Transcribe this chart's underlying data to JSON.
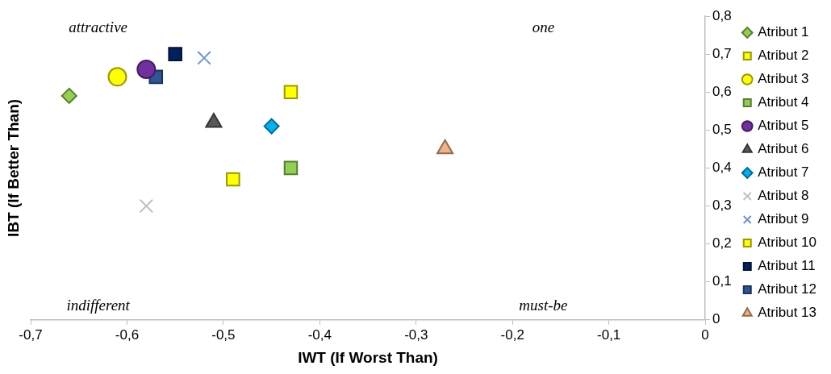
{
  "chart_data": {
    "type": "scatter",
    "xlabel": "IWT (If Worst Than)",
    "ylabel": "IBT (If Better Than)",
    "xlim": [
      -0.7,
      0
    ],
    "xticks": [
      {
        "value": -0.7,
        "label": "-0,7"
      },
      {
        "value": -0.6,
        "label": "-0,6"
      },
      {
        "value": -0.5,
        "label": "-0,5"
      },
      {
        "value": -0.4,
        "label": "-0,4"
      },
      {
        "value": -0.3,
        "label": "-0,3"
      },
      {
        "value": -0.2,
        "label": "-0,2"
      },
      {
        "value": -0.1,
        "label": "-0,1"
      },
      0
    ],
    "ylim": [
      0,
      0.8
    ],
    "yticks": [
      0,
      {
        "value": 0.1,
        "label": "0,1"
      },
      {
        "value": 0.2,
        "label": "0,2"
      },
      {
        "value": 0.3,
        "label": "0,3"
      },
      {
        "value": 0.4,
        "label": "0,4"
      },
      {
        "value": 0.5,
        "label": "0,5"
      },
      {
        "value": 0.6,
        "label": "0,6"
      },
      {
        "value": 0.7,
        "label": "0,7"
      },
      {
        "value": 0.8,
        "label": "0,8"
      }
    ],
    "grid": false,
    "legend": "right",
    "annotations": [
      "attractive",
      "one",
      "indifferent",
      "must-be"
    ],
    "series": [
      {
        "name": "Atribut 1",
        "color": "#92d050",
        "marker": "diamond",
        "x": [
          -0.66
        ],
        "values": [
          0.59
        ]
      },
      {
        "name": "Atribut 2",
        "color": "#ffff00",
        "marker": "square",
        "x": [
          -0.49
        ],
        "values": [
          0.37
        ]
      },
      {
        "name": "Atribut 3",
        "color": "#ffff00",
        "marker": "circle",
        "x": [
          -0.61
        ],
        "values": [
          0.64
        ]
      },
      {
        "name": "Atribut 4",
        "color": "#92d050",
        "marker": "square",
        "x": [
          -0.43
        ],
        "values": [
          0.4
        ]
      },
      {
        "name": "Atribut 5",
        "color": "#7030a0",
        "marker": "circle",
        "x": [
          -0.58
        ],
        "values": [
          0.66
        ]
      },
      {
        "name": "Atribut 6",
        "color": "#595959",
        "marker": "triangle",
        "x": [
          -0.51
        ],
        "values": [
          0.52
        ]
      },
      {
        "name": "Atribut 7",
        "color": "#00b0f0",
        "marker": "diamond",
        "x": [
          -0.45
        ],
        "values": [
          0.51
        ]
      },
      {
        "name": "Atribut 8",
        "color": "#bfbfbf",
        "marker": "cross",
        "x": [
          -0.58
        ],
        "values": [
          0.3
        ]
      },
      {
        "name": "Atribut 9",
        "color": "#6f93d6",
        "marker": "cross",
        "x": [
          -0.52
        ],
        "values": [
          0.69
        ]
      },
      {
        "name": "Atribut 10",
        "color": "#ffff00",
        "marker": "square",
        "x": [
          -0.43
        ],
        "values": [
          0.6
        ]
      },
      {
        "name": "Atribut 11",
        "color": "#002060",
        "marker": "square",
        "x": [
          -0.55
        ],
        "values": [
          0.7
        ]
      },
      {
        "name": "Atribut 12",
        "color": "#2f5597",
        "marker": "square",
        "x": [
          -0.57
        ],
        "values": [
          0.64
        ]
      },
      {
        "name": "Atribut 13",
        "color": "#f4b183",
        "marker": "triangle",
        "x": [
          -0.27
        ],
        "values": [
          0.45
        ]
      }
    ]
  }
}
